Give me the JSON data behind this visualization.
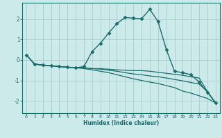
{
  "title": "",
  "xlabel": "Humidex (Indice chaleur)",
  "ylabel": "",
  "bg_color": "#cceaea",
  "grid_color": "#aacccc",
  "line_color": "#1a6b6b",
  "xlim": [
    -0.5,
    23.5
  ],
  "ylim": [
    -2.6,
    2.8
  ],
  "xticks": [
    0,
    1,
    2,
    3,
    4,
    5,
    6,
    7,
    8,
    9,
    10,
    11,
    12,
    13,
    14,
    15,
    16,
    17,
    18,
    19,
    20,
    21,
    22,
    23
  ],
  "yticks": [
    -2,
    -1,
    0,
    1,
    2
  ],
  "lines": [
    {
      "x": [
        0,
        1,
        2,
        3,
        4,
        5,
        6,
        7,
        8,
        9,
        10,
        11,
        12,
        13,
        14,
        15,
        16,
        17,
        18,
        19,
        20,
        21,
        22,
        23
      ],
      "y": [
        0.25,
        -0.2,
        -0.25,
        -0.28,
        -0.32,
        -0.35,
        -0.38,
        -0.32,
        0.42,
        0.82,
        1.32,
        1.78,
        2.08,
        2.05,
        2.02,
        2.48,
        1.88,
        0.52,
        -0.55,
        -0.62,
        -0.72,
        -1.08,
        -1.58,
        -2.1
      ],
      "marker": "D",
      "markersize": 2.5,
      "linewidth": 1.0
    },
    {
      "x": [
        0,
        1,
        2,
        3,
        4,
        5,
        6,
        7,
        8,
        9,
        10,
        11,
        12,
        13,
        14,
        15,
        16,
        17,
        18,
        19,
        20,
        21,
        22,
        23
      ],
      "y": [
        0.25,
        -0.2,
        -0.25,
        -0.28,
        -0.32,
        -0.35,
        -0.38,
        -0.38,
        -0.42,
        -0.42,
        -0.45,
        -0.48,
        -0.5,
        -0.52,
        -0.52,
        -0.55,
        -0.6,
        -0.65,
        -0.7,
        -0.75,
        -0.82,
        -0.88,
        -1.55,
        -2.1
      ],
      "marker": null,
      "markersize": 0,
      "linewidth": 0.9
    },
    {
      "x": [
        0,
        1,
        2,
        3,
        4,
        5,
        6,
        7,
        8,
        9,
        10,
        11,
        12,
        13,
        14,
        15,
        16,
        17,
        18,
        19,
        20,
        21,
        22,
        23
      ],
      "y": [
        0.25,
        -0.2,
        -0.25,
        -0.28,
        -0.32,
        -0.35,
        -0.38,
        -0.38,
        -0.42,
        -0.45,
        -0.5,
        -0.55,
        -0.62,
        -0.68,
        -0.72,
        -0.78,
        -0.82,
        -0.88,
        -0.95,
        -1.02,
        -1.1,
        -1.18,
        -1.55,
        -2.1
      ],
      "marker": null,
      "markersize": 0,
      "linewidth": 0.9
    },
    {
      "x": [
        0,
        1,
        2,
        3,
        4,
        5,
        6,
        7,
        8,
        9,
        10,
        11,
        12,
        13,
        14,
        15,
        16,
        17,
        18,
        19,
        20,
        21,
        22,
        23
      ],
      "y": [
        0.25,
        -0.2,
        -0.25,
        -0.28,
        -0.32,
        -0.35,
        -0.38,
        -0.42,
        -0.48,
        -0.55,
        -0.62,
        -0.72,
        -0.82,
        -0.92,
        -1.0,
        -1.08,
        -1.15,
        -1.25,
        -1.35,
        -1.52,
        -1.62,
        -1.75,
        -1.88,
        -2.1
      ],
      "marker": null,
      "markersize": 0,
      "linewidth": 0.9
    }
  ]
}
